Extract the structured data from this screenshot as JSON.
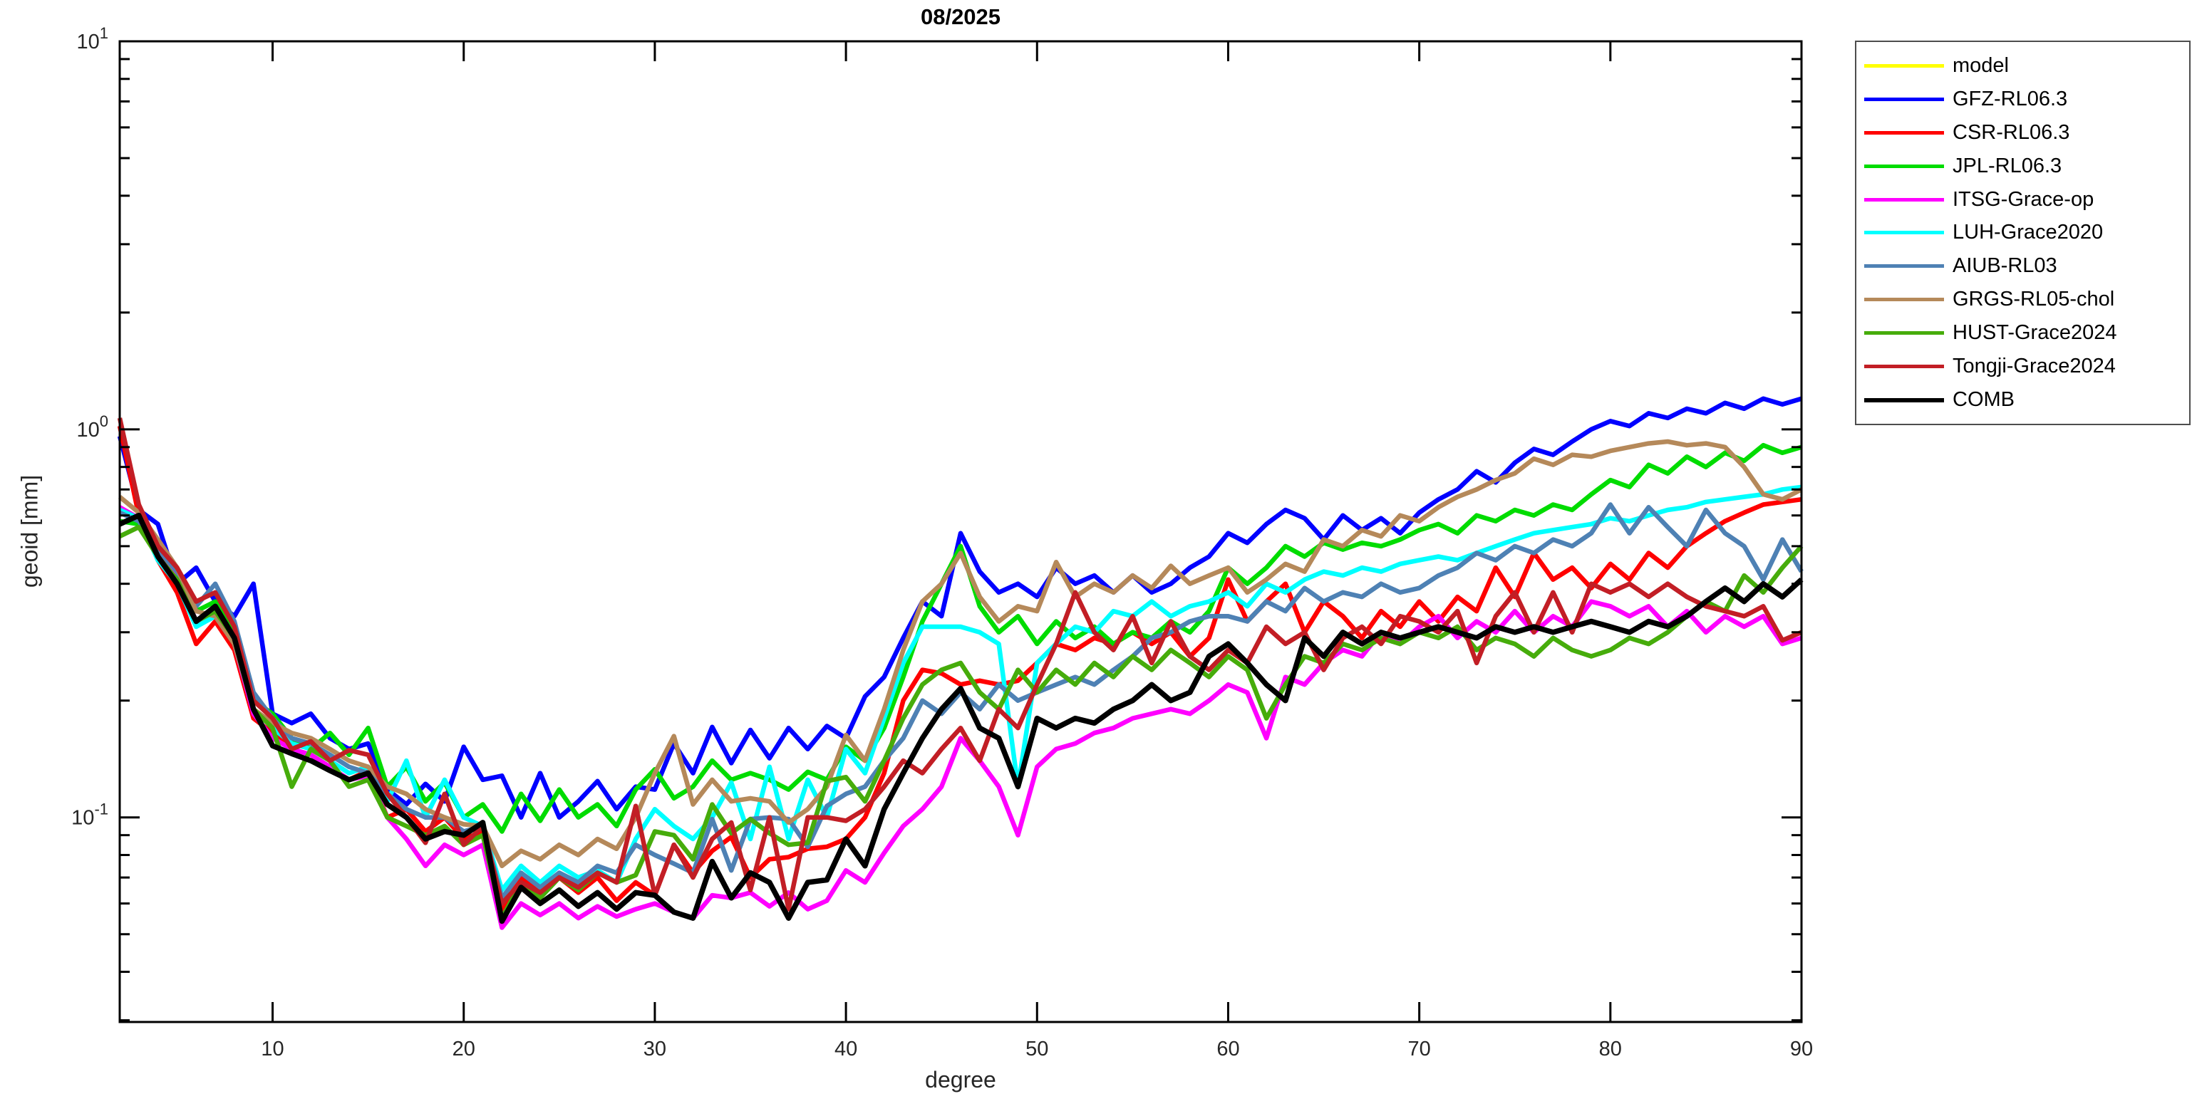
{
  "chart_data": {
    "type": "line",
    "title": "08/2025",
    "xlabel": "degree",
    "ylabel": "geoid [mm]",
    "grid": false,
    "legend_position": "outside-right",
    "x_axis": {
      "scale": "linear",
      "min": 2,
      "max": 90,
      "ticks": [
        10,
        20,
        30,
        40,
        50,
        60,
        70,
        80,
        90
      ]
    },
    "y_axis": {
      "scale": "log",
      "min": 0.0297,
      "max": 10,
      "ticks": [
        {
          "value": 10,
          "base": "10",
          "exp": "1"
        },
        {
          "value": 1,
          "base": "10",
          "exp": "0"
        },
        {
          "value": 0.1,
          "base": "10",
          "exp": "-1"
        }
      ]
    },
    "x_start": 2,
    "x_step": 1,
    "series": [
      {
        "name": "model",
        "color": "#FFFF00",
        "line_width": 6.5,
        "visible_in_plot": false,
        "values": []
      },
      {
        "name": "GFZ-RL06.3",
        "color": "#0000FF",
        "line_width": 6.5,
        "visible_in_plot": true,
        "values": [
          0.96,
          0.62,
          0.57,
          0.4,
          0.44,
          0.36,
          0.33,
          0.4,
          0.185,
          0.175,
          0.185,
          0.16,
          0.15,
          0.155,
          0.118,
          0.108,
          0.122,
          0.11,
          0.152,
          0.125,
          0.128,
          0.1,
          0.13,
          0.1,
          0.11,
          0.124,
          0.105,
          0.12,
          0.118,
          0.155,
          0.13,
          0.171,
          0.138,
          0.168,
          0.142,
          0.17,
          0.15,
          0.172,
          0.16,
          0.205,
          0.23,
          0.29,
          0.36,
          0.33,
          0.54,
          0.43,
          0.38,
          0.4,
          0.37,
          0.44,
          0.4,
          0.42,
          0.38,
          0.42,
          0.38,
          0.4,
          0.44,
          0.47,
          0.54,
          0.51,
          0.57,
          0.62,
          0.59,
          0.52,
          0.6,
          0.55,
          0.59,
          0.54,
          0.61,
          0.66,
          0.7,
          0.78,
          0.73,
          0.82,
          0.89,
          0.86,
          0.93,
          1.0,
          1.05,
          1.02,
          1.1,
          1.07,
          1.13,
          1.1,
          1.17,
          1.13,
          1.2,
          1.16,
          1.2
        ]
      },
      {
        "name": "CSR-RL06.3",
        "color": "#FF0000",
        "line_width": 6.5,
        "visible_in_plot": true,
        "values": [
          1.02,
          0.6,
          0.46,
          0.38,
          0.28,
          0.32,
          0.27,
          0.18,
          0.165,
          0.15,
          0.145,
          0.135,
          0.125,
          0.132,
          0.1,
          0.105,
          0.092,
          0.1,
          0.088,
          0.092,
          0.058,
          0.07,
          0.065,
          0.07,
          0.064,
          0.07,
          0.061,
          0.068,
          0.063,
          0.085,
          0.072,
          0.082,
          0.089,
          0.07,
          0.078,
          0.079,
          0.083,
          0.084,
          0.088,
          0.1,
          0.13,
          0.2,
          0.24,
          0.235,
          0.22,
          0.225,
          0.22,
          0.225,
          0.25,
          0.28,
          0.27,
          0.29,
          0.28,
          0.3,
          0.28,
          0.3,
          0.26,
          0.29,
          0.41,
          0.32,
          0.36,
          0.4,
          0.3,
          0.36,
          0.33,
          0.29,
          0.34,
          0.31,
          0.36,
          0.32,
          0.37,
          0.34,
          0.44,
          0.37,
          0.48,
          0.41,
          0.44,
          0.39,
          0.45,
          0.41,
          0.48,
          0.44,
          0.5,
          0.54,
          0.58,
          0.61,
          0.64,
          0.65,
          0.66
        ]
      },
      {
        "name": "JPL-RL06.3",
        "color": "#00DC00",
        "line_width": 6.5,
        "visible_in_plot": true,
        "values": [
          0.58,
          0.57,
          0.5,
          0.42,
          0.34,
          0.36,
          0.3,
          0.2,
          0.185,
          0.16,
          0.15,
          0.165,
          0.145,
          0.17,
          0.12,
          0.135,
          0.11,
          0.123,
          0.1,
          0.108,
          0.092,
          0.115,
          0.098,
          0.118,
          0.1,
          0.108,
          0.095,
          0.118,
          0.133,
          0.112,
          0.12,
          0.14,
          0.125,
          0.13,
          0.125,
          0.118,
          0.131,
          0.125,
          0.152,
          0.14,
          0.17,
          0.23,
          0.32,
          0.4,
          0.5,
          0.35,
          0.3,
          0.33,
          0.28,
          0.32,
          0.29,
          0.31,
          0.28,
          0.3,
          0.29,
          0.32,
          0.3,
          0.34,
          0.44,
          0.4,
          0.44,
          0.5,
          0.47,
          0.51,
          0.49,
          0.51,
          0.5,
          0.52,
          0.55,
          0.57,
          0.54,
          0.6,
          0.58,
          0.62,
          0.6,
          0.64,
          0.62,
          0.68,
          0.74,
          0.71,
          0.81,
          0.77,
          0.85,
          0.8,
          0.87,
          0.83,
          0.91,
          0.87,
          0.9
        ]
      },
      {
        "name": "ITSG-Grace-op",
        "color": "#FF00FF",
        "line_width": 6.5,
        "visible_in_plot": true,
        "values": [
          0.63,
          0.59,
          0.48,
          0.42,
          0.32,
          0.34,
          0.28,
          0.185,
          0.16,
          0.15,
          0.145,
          0.135,
          0.125,
          0.128,
          0.1,
          0.088,
          0.075,
          0.085,
          0.08,
          0.085,
          0.052,
          0.06,
          0.056,
          0.06,
          0.055,
          0.059,
          0.0555,
          0.058,
          0.06,
          0.057,
          0.055,
          0.063,
          0.062,
          0.064,
          0.059,
          0.064,
          0.058,
          0.061,
          0.073,
          0.068,
          0.081,
          0.095,
          0.105,
          0.12,
          0.16,
          0.14,
          0.12,
          0.09,
          0.135,
          0.15,
          0.155,
          0.165,
          0.17,
          0.18,
          0.185,
          0.19,
          0.185,
          0.2,
          0.22,
          0.21,
          0.16,
          0.23,
          0.22,
          0.25,
          0.27,
          0.26,
          0.3,
          0.28,
          0.31,
          0.33,
          0.29,
          0.32,
          0.3,
          0.34,
          0.3,
          0.33,
          0.31,
          0.36,
          0.35,
          0.33,
          0.35,
          0.31,
          0.34,
          0.3,
          0.33,
          0.31,
          0.33,
          0.28,
          0.29
        ]
      },
      {
        "name": "LUH-Grace2020",
        "color": "#00FFFF",
        "line_width": 6.5,
        "visible_in_plot": true,
        "values": [
          0.62,
          0.59,
          0.46,
          0.4,
          0.31,
          0.33,
          0.28,
          0.19,
          0.17,
          0.155,
          0.15,
          0.14,
          0.13,
          0.135,
          0.11,
          0.14,
          0.1,
          0.125,
          0.1,
          0.095,
          0.065,
          0.075,
          0.068,
          0.075,
          0.07,
          0.073,
          0.068,
          0.088,
          0.105,
          0.095,
          0.088,
          0.1,
          0.123,
          0.088,
          0.135,
          0.088,
          0.125,
          0.1,
          0.15,
          0.13,
          0.18,
          0.25,
          0.31,
          0.31,
          0.31,
          0.3,
          0.28,
          0.12,
          0.25,
          0.28,
          0.31,
          0.3,
          0.34,
          0.33,
          0.36,
          0.33,
          0.35,
          0.36,
          0.38,
          0.35,
          0.4,
          0.38,
          0.41,
          0.43,
          0.42,
          0.44,
          0.43,
          0.45,
          0.46,
          0.47,
          0.46,
          0.48,
          0.5,
          0.52,
          0.54,
          0.55,
          0.56,
          0.57,
          0.59,
          0.58,
          0.6,
          0.62,
          0.63,
          0.65,
          0.66,
          0.67,
          0.68,
          0.7,
          0.71
        ]
      },
      {
        "name": "AIUB-RL03",
        "color": "#4E81B4",
        "line_width": 6.5,
        "visible_in_plot": true,
        "values": [
          0.61,
          0.58,
          0.49,
          0.43,
          0.35,
          0.4,
          0.32,
          0.21,
          0.18,
          0.16,
          0.155,
          0.145,
          0.135,
          0.13,
          0.115,
          0.105,
          0.1,
          0.1,
          0.092,
          0.095,
          0.062,
          0.072,
          0.066,
          0.072,
          0.068,
          0.075,
          0.072,
          0.085,
          0.08,
          0.076,
          0.072,
          0.099,
          0.073,
          0.099,
          0.1,
          0.099,
          0.084,
          0.107,
          0.115,
          0.12,
          0.14,
          0.16,
          0.2,
          0.185,
          0.21,
          0.19,
          0.22,
          0.2,
          0.21,
          0.22,
          0.23,
          0.22,
          0.24,
          0.26,
          0.29,
          0.3,
          0.32,
          0.33,
          0.33,
          0.32,
          0.36,
          0.34,
          0.39,
          0.36,
          0.38,
          0.37,
          0.4,
          0.38,
          0.39,
          0.42,
          0.44,
          0.48,
          0.46,
          0.5,
          0.48,
          0.52,
          0.5,
          0.54,
          0.64,
          0.54,
          0.63,
          0.56,
          0.5,
          0.62,
          0.54,
          0.5,
          0.41,
          0.52,
          0.43
        ]
      },
      {
        "name": "GRGS-RL05-chol",
        "color": "#B5895A",
        "line_width": 6.5,
        "visible_in_plot": true,
        "values": [
          0.67,
          0.61,
          0.52,
          0.44,
          0.34,
          0.33,
          0.28,
          0.19,
          0.175,
          0.165,
          0.16,
          0.15,
          0.14,
          0.135,
          0.12,
          0.115,
          0.105,
          0.1,
          0.096,
          0.095,
          0.075,
          0.082,
          0.078,
          0.085,
          0.08,
          0.088,
          0.083,
          0.1,
          0.13,
          0.162,
          0.108,
          0.125,
          0.11,
          0.112,
          0.11,
          0.097,
          0.105,
          0.12,
          0.163,
          0.14,
          0.19,
          0.27,
          0.36,
          0.4,
          0.48,
          0.37,
          0.32,
          0.35,
          0.34,
          0.455,
          0.37,
          0.4,
          0.38,
          0.42,
          0.39,
          0.445,
          0.4,
          0.42,
          0.44,
          0.38,
          0.41,
          0.45,
          0.43,
          0.52,
          0.5,
          0.55,
          0.53,
          0.6,
          0.58,
          0.63,
          0.67,
          0.7,
          0.74,
          0.77,
          0.84,
          0.81,
          0.86,
          0.85,
          0.88,
          0.9,
          0.92,
          0.93,
          0.91,
          0.92,
          0.9,
          0.8,
          0.68,
          0.66,
          0.7
        ]
      },
      {
        "name": "HUST-Grace2024",
        "color": "#46AC0B",
        "line_width": 6.5,
        "visible_in_plot": true,
        "values": [
          0.53,
          0.56,
          0.47,
          0.41,
          0.32,
          0.34,
          0.29,
          0.19,
          0.17,
          0.12,
          0.15,
          0.14,
          0.12,
          0.125,
          0.1,
          0.095,
          0.09,
          0.095,
          0.085,
          0.09,
          0.055,
          0.068,
          0.062,
          0.07,
          0.065,
          0.072,
          0.068,
          0.071,
          0.092,
          0.09,
          0.078,
          0.108,
          0.091,
          0.099,
          0.091,
          0.085,
          0.086,
          0.124,
          0.127,
          0.11,
          0.14,
          0.18,
          0.22,
          0.24,
          0.25,
          0.21,
          0.19,
          0.24,
          0.21,
          0.24,
          0.22,
          0.25,
          0.23,
          0.26,
          0.24,
          0.27,
          0.25,
          0.23,
          0.26,
          0.24,
          0.18,
          0.22,
          0.26,
          0.25,
          0.28,
          0.27,
          0.29,
          0.28,
          0.3,
          0.29,
          0.31,
          0.27,
          0.29,
          0.28,
          0.26,
          0.29,
          0.27,
          0.26,
          0.27,
          0.29,
          0.28,
          0.3,
          0.33,
          0.36,
          0.34,
          0.42,
          0.38,
          0.44,
          0.5
        ]
      },
      {
        "name": "Tongji-Grace2024",
        "color": "#C21E25",
        "line_width": 6.5,
        "visible_in_plot": true,
        "values": [
          1.07,
          0.64,
          0.5,
          0.44,
          0.36,
          0.38,
          0.31,
          0.2,
          0.18,
          0.15,
          0.157,
          0.14,
          0.149,
          0.145,
          0.115,
          0.1,
          0.086,
          0.115,
          0.085,
          0.095,
          0.06,
          0.068,
          0.064,
          0.07,
          0.066,
          0.072,
          0.068,
          0.107,
          0.063,
          0.085,
          0.07,
          0.088,
          0.097,
          0.065,
          0.1,
          0.058,
          0.1,
          0.1,
          0.098,
          0.105,
          0.12,
          0.14,
          0.13,
          0.15,
          0.17,
          0.14,
          0.19,
          0.17,
          0.22,
          0.28,
          0.38,
          0.3,
          0.27,
          0.33,
          0.25,
          0.32,
          0.26,
          0.24,
          0.27,
          0.25,
          0.31,
          0.28,
          0.3,
          0.24,
          0.29,
          0.31,
          0.28,
          0.33,
          0.32,
          0.3,
          0.34,
          0.25,
          0.33,
          0.38,
          0.3,
          0.38,
          0.3,
          0.4,
          0.38,
          0.4,
          0.37,
          0.4,
          0.37,
          0.35,
          0.34,
          0.33,
          0.35,
          0.286,
          0.3
        ]
      },
      {
        "name": "COMB",
        "color": "#000000",
        "line_width": 7.5,
        "visible_in_plot": true,
        "values": [
          0.57,
          0.6,
          0.47,
          0.4,
          0.32,
          0.35,
          0.29,
          0.19,
          0.153,
          0.146,
          0.14,
          0.132,
          0.125,
          0.13,
          0.108,
          0.1,
          0.088,
          0.092,
          0.09,
          0.097,
          0.054,
          0.066,
          0.06,
          0.065,
          0.059,
          0.064,
          0.058,
          0.064,
          0.063,
          0.057,
          0.055,
          0.077,
          0.062,
          0.072,
          0.068,
          0.055,
          0.068,
          0.069,
          0.088,
          0.075,
          0.105,
          0.13,
          0.16,
          0.19,
          0.215,
          0.17,
          0.16,
          0.12,
          0.18,
          0.17,
          0.18,
          0.175,
          0.19,
          0.2,
          0.22,
          0.2,
          0.21,
          0.26,
          0.28,
          0.25,
          0.22,
          0.2,
          0.29,
          0.26,
          0.3,
          0.28,
          0.3,
          0.29,
          0.3,
          0.31,
          0.3,
          0.29,
          0.31,
          0.3,
          0.31,
          0.3,
          0.31,
          0.32,
          0.31,
          0.3,
          0.32,
          0.31,
          0.33,
          0.36,
          0.39,
          0.36,
          0.4,
          0.37,
          0.41
        ]
      }
    ]
  }
}
